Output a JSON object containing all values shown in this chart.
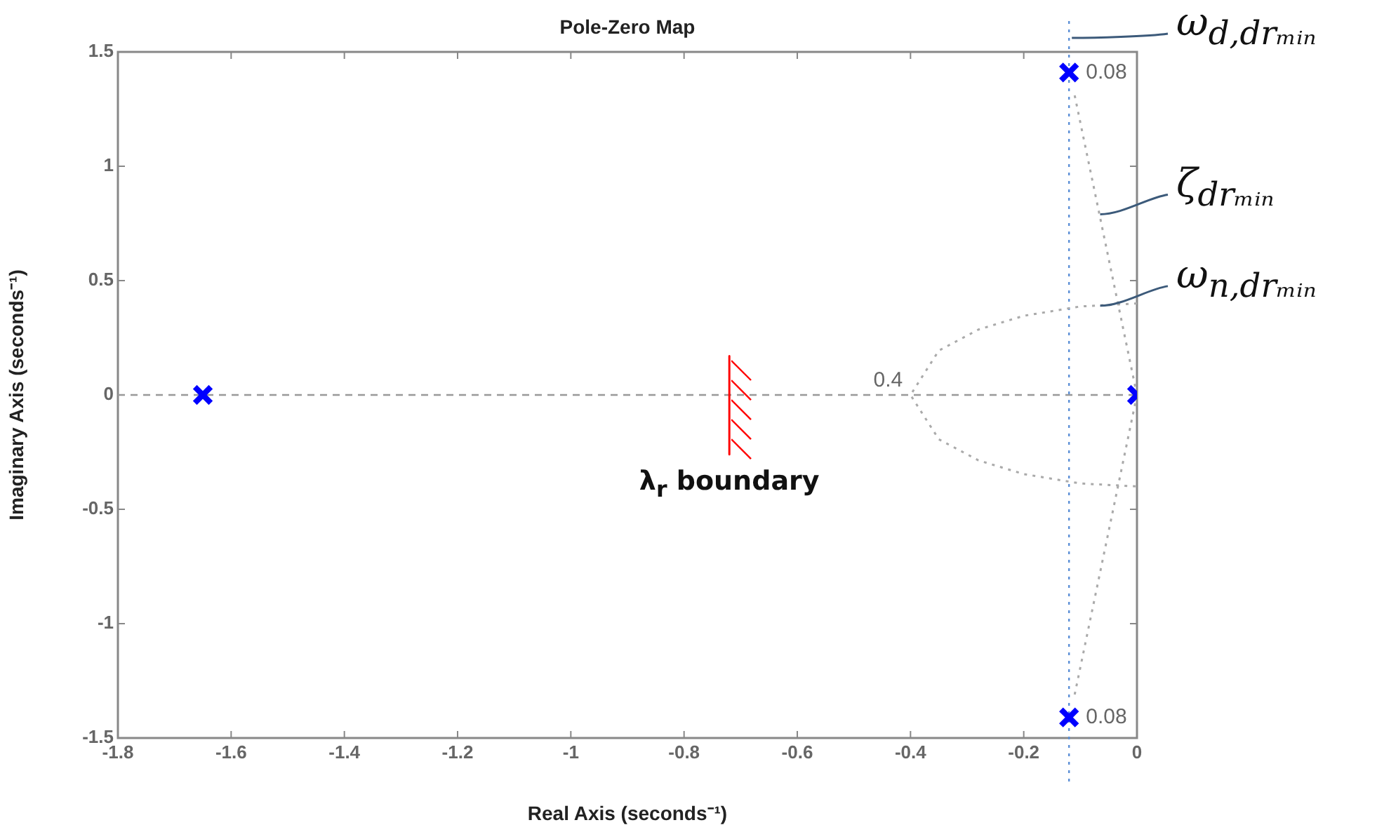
{
  "chart_data": {
    "type": "scatter",
    "title": "Pole-Zero Map",
    "xlabel": "Real Axis (seconds⁻¹)",
    "ylabel": "Imaginary Axis (seconds⁻¹)",
    "xlim": [
      -1.8,
      0
    ],
    "xticks": [
      -1.8,
      -1.6,
      -1.4,
      -1.2,
      -1,
      -0.8,
      -0.6,
      -0.4,
      -0.2,
      0
    ],
    "ylim": [
      -1.5,
      1.5
    ],
    "yticks": [
      -1.5,
      -1,
      -0.5,
      0,
      0.5,
      1,
      1.5
    ],
    "grid": false,
    "legend": false,
    "series": [
      {
        "type": "line",
        "color": "#aaaaaa",
        "line_style": "dotted",
        "marker": "none",
        "x": [
          -0.11,
          0
        ],
        "values": [
          1.31,
          0
        ]
      },
      {
        "type": "line",
        "color": "#aaaaaa",
        "line_style": "dotted",
        "marker": "none",
        "x": [
          -0.11,
          0
        ],
        "values": [
          -1.31,
          0
        ]
      },
      {
        "type": "line",
        "color": "#aaaaaa",
        "line_style": "dotted",
        "marker": "none",
        "x": [
          0,
          -0.1,
          -0.2,
          -0.28,
          -0.35,
          -0.4,
          -0.35,
          -0.28,
          -0.2,
          -0.1,
          0
        ],
        "values": [
          0.4,
          0.387,
          0.346,
          0.286,
          0.194,
          0,
          -0.194,
          -0.286,
          -0.346,
          -0.387,
          -0.4
        ]
      },
      {
        "type": "line",
        "name": "λ$_{r}$ boundary",
        "color": "#ff0000",
        "line_style": "solid",
        "marker": "none",
        "x": [
          -0.72,
          -0.72
        ],
        "values": [
          0.17,
          -0.26
        ]
      },
      {
        "type": "scatter",
        "color": "#0000ff",
        "marker": "cross",
        "x": [
          -1.65,
          -0.12,
          -0.12,
          0
        ],
        "values": [
          0,
          1.41,
          -1.41,
          0
        ]
      }
    ],
    "ref_lines": [
      {
        "axis": "y",
        "value": 0,
        "color": "#999999",
        "line_style": "dashed"
      },
      {
        "axis": "x",
        "value": -0.12,
        "label": "ω$_{d,drₘᵢₙ}$",
        "color": "#5b8fd6",
        "line_style": "dotted"
      }
    ],
    "annotations": [
      {
        "text": "0.4",
        "x": -0.4,
        "y": 0
      },
      {
        "text": "0.08",
        "x": -0.12,
        "y": 1.41
      },
      {
        "text": "0.08",
        "x": -0.12,
        "y": -1.41
      },
      {
        "text": "ζ$_{drₘᵢₙ}$",
        "x": -0.07,
        "y": 0.79
      },
      {
        "text": "ω$_{n,drₘᵢₙ}$",
        "x": -0.07,
        "y": 0.39
      }
    ]
  }
}
